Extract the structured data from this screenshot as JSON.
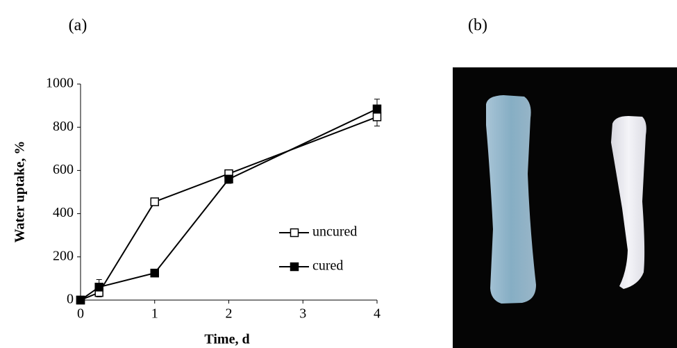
{
  "chart_data": {
    "type": "line",
    "panel_label": "(a)",
    "xlabel": "Time, d",
    "ylabel": "Water uptake, %",
    "x": [
      0,
      0.25,
      1,
      2,
      4
    ],
    "series": [
      {
        "name": "uncured",
        "color": "#000000",
        "marker": "open-square",
        "values": [
          0,
          35,
          455,
          585,
          848
        ],
        "errors": [
          0,
          20,
          10,
          15,
          42
        ]
      },
      {
        "name": "cured",
        "color": "#000000",
        "marker": "filled-square",
        "values": [
          0,
          60,
          125,
          560,
          885
        ],
        "errors": [
          0,
          35,
          10,
          20,
          45
        ]
      }
    ],
    "xlim": [
      0,
      4
    ],
    "ylim": [
      0,
      1000
    ],
    "xticks": [
      0,
      1,
      2,
      3,
      4
    ],
    "yticks": [
      0,
      200,
      400,
      600,
      800,
      1000
    ],
    "grid": false,
    "legend": "right"
  },
  "photo": {
    "panel_label": "(b)"
  }
}
